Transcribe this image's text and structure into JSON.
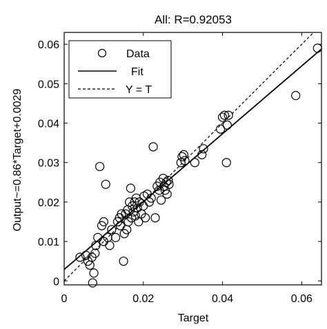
{
  "chart_data": {
    "type": "scatter",
    "title": "All: R=0.92053",
    "xlabel": "Target",
    "ylabel": "Output~=0.86*Target+0.0029",
    "xlim": [
      0,
      0.065
    ],
    "ylim": [
      -0.001,
      0.063
    ],
    "xticks": [
      "0",
      "0.02",
      "0.04",
      "0.06"
    ],
    "xtick_values": [
      0,
      0.02,
      0.04,
      0.06
    ],
    "yticks": [
      "0",
      "0.01",
      "0.02",
      "0.03",
      "0.04",
      "0.05",
      "0.06"
    ],
    "ytick_values": [
      0,
      0.01,
      0.02,
      0.03,
      0.04,
      0.05,
      0.06
    ],
    "grid": false,
    "legend_position": "top-left",
    "legend": {
      "data": "Data",
      "fit": "Fit",
      "identity": "Y = T"
    },
    "fit": {
      "slope": 0.86,
      "intercept": 0.0029
    },
    "series": [
      {
        "name": "Data",
        "marker": "circle",
        "points": [
          [
            0.004,
            0.006
          ],
          [
            0.0055,
            0.0065
          ],
          [
            0.006,
            0.005
          ],
          [
            0.0065,
            0.004
          ],
          [
            0.007,
            0.006
          ],
          [
            0.0072,
            -0.0005
          ],
          [
            0.0075,
            0.002
          ],
          [
            0.0078,
            0.007
          ],
          [
            0.008,
            0.009
          ],
          [
            0.0085,
            0.011
          ],
          [
            0.009,
            0.029
          ],
          [
            0.0095,
            0.014
          ],
          [
            0.01,
            0.015
          ],
          [
            0.01,
            0.01
          ],
          [
            0.0105,
            0.0245
          ],
          [
            0.011,
            0.011
          ],
          [
            0.0115,
            0.009
          ],
          [
            0.012,
            0.013
          ],
          [
            0.013,
            0.011
          ],
          [
            0.0135,
            0.015
          ],
          [
            0.014,
            0.016
          ],
          [
            0.0142,
            0.014
          ],
          [
            0.0145,
            0.017
          ],
          [
            0.015,
            0.005
          ],
          [
            0.0152,
            0.012
          ],
          [
            0.0155,
            0.017
          ],
          [
            0.0158,
            0.013
          ],
          [
            0.016,
            0.018
          ],
          [
            0.0162,
            0.015
          ],
          [
            0.0165,
            0.02
          ],
          [
            0.0168,
            0.0235
          ],
          [
            0.017,
            0.016
          ],
          [
            0.0172,
            0.019
          ],
          [
            0.0175,
            0.0175
          ],
          [
            0.0178,
            0.02
          ],
          [
            0.018,
            0.0165
          ],
          [
            0.0182,
            0.021
          ],
          [
            0.0185,
            0.0185
          ],
          [
            0.0188,
            0.015
          ],
          [
            0.019,
            0.02
          ],
          [
            0.0195,
            0.017
          ],
          [
            0.02,
            0.019
          ],
          [
            0.0202,
            0.0215
          ],
          [
            0.0205,
            0.016
          ],
          [
            0.021,
            0.022
          ],
          [
            0.0215,
            0.02
          ],
          [
            0.022,
            0.021
          ],
          [
            0.0225,
            0.034
          ],
          [
            0.023,
            0.016
          ],
          [
            0.0235,
            0.024
          ],
          [
            0.024,
            0.023
          ],
          [
            0.0242,
            0.025
          ],
          [
            0.0245,
            0.0205
          ],
          [
            0.025,
            0.026
          ],
          [
            0.0252,
            0.024
          ],
          [
            0.0255,
            0.023
          ],
          [
            0.0258,
            0.025
          ],
          [
            0.026,
            0.022
          ],
          [
            0.0263,
            0.0255
          ],
          [
            0.0265,
            0.0245
          ],
          [
            0.0295,
            0.03
          ],
          [
            0.0298,
            0.0315
          ],
          [
            0.0302,
            0.032
          ],
          [
            0.0305,
            0.0305
          ],
          [
            0.033,
            0.03
          ],
          [
            0.0348,
            0.032
          ],
          [
            0.0352,
            0.0335
          ],
          [
            0.0395,
            0.0385
          ],
          [
            0.04,
            0.0415
          ],
          [
            0.0405,
            0.042
          ],
          [
            0.041,
            0.03
          ],
          [
            0.0412,
            0.0395
          ],
          [
            0.0415,
            0.042
          ],
          [
            0.0585,
            0.047
          ],
          [
            0.064,
            0.059
          ]
        ]
      }
    ]
  }
}
